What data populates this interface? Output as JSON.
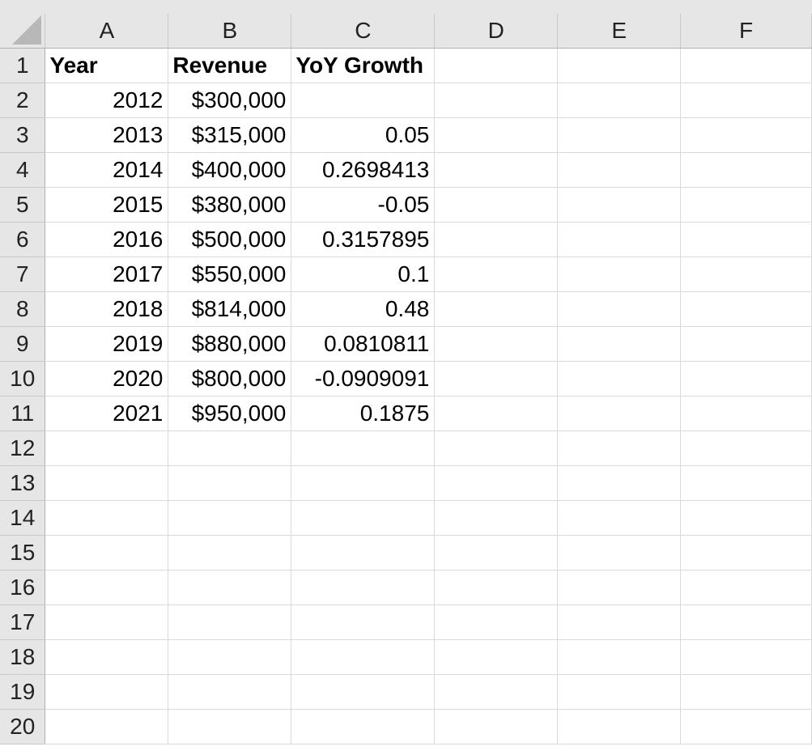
{
  "columns": [
    "A",
    "B",
    "C",
    "D",
    "E",
    "F"
  ],
  "rows": [
    {
      "num": "1",
      "cells": [
        "Year",
        "Revenue",
        "YoY Growth",
        "",
        "",
        ""
      ]
    },
    {
      "num": "2",
      "cells": [
        "2012",
        "$300,000",
        "",
        "",
        "",
        ""
      ]
    },
    {
      "num": "3",
      "cells": [
        "2013",
        "$315,000",
        "0.05",
        "",
        "",
        ""
      ]
    },
    {
      "num": "4",
      "cells": [
        "2014",
        "$400,000",
        "0.2698413",
        "",
        "",
        ""
      ]
    },
    {
      "num": "5",
      "cells": [
        "2015",
        "$380,000",
        "-0.05",
        "",
        "",
        ""
      ]
    },
    {
      "num": "6",
      "cells": [
        "2016",
        "$500,000",
        "0.3157895",
        "",
        "",
        ""
      ]
    },
    {
      "num": "7",
      "cells": [
        "2017",
        "$550,000",
        "0.1",
        "",
        "",
        ""
      ]
    },
    {
      "num": "8",
      "cells": [
        "2018",
        "$814,000",
        "0.48",
        "",
        "",
        ""
      ]
    },
    {
      "num": "9",
      "cells": [
        "2019",
        "$880,000",
        "0.0810811",
        "",
        "",
        ""
      ]
    },
    {
      "num": "10",
      "cells": [
        "2020",
        "$800,000",
        "-0.0909091",
        "",
        "",
        ""
      ]
    },
    {
      "num": "11",
      "cells": [
        "2021",
        "$950,000",
        "0.1875",
        "",
        "",
        ""
      ]
    },
    {
      "num": "12",
      "cells": [
        "",
        "",
        "",
        "",
        "",
        ""
      ]
    },
    {
      "num": "13",
      "cells": [
        "",
        "",
        "",
        "",
        "",
        ""
      ]
    },
    {
      "num": "14",
      "cells": [
        "",
        "",
        "",
        "",
        "",
        ""
      ]
    },
    {
      "num": "15",
      "cells": [
        "",
        "",
        "",
        "",
        "",
        ""
      ]
    },
    {
      "num": "16",
      "cells": [
        "",
        "",
        "",
        "",
        "",
        ""
      ]
    },
    {
      "num": "17",
      "cells": [
        "",
        "",
        "",
        "",
        "",
        ""
      ]
    },
    {
      "num": "18",
      "cells": [
        "",
        "",
        "",
        "",
        "",
        ""
      ]
    },
    {
      "num": "19",
      "cells": [
        "",
        "",
        "",
        "",
        "",
        ""
      ]
    },
    {
      "num": "20",
      "cells": [
        "",
        "",
        "",
        "",
        "",
        ""
      ]
    }
  ],
  "colors": {
    "header_bg": "#e6e6e6",
    "gridline": "#d9d9d9",
    "corner_triangle": "#b8b8b8"
  }
}
